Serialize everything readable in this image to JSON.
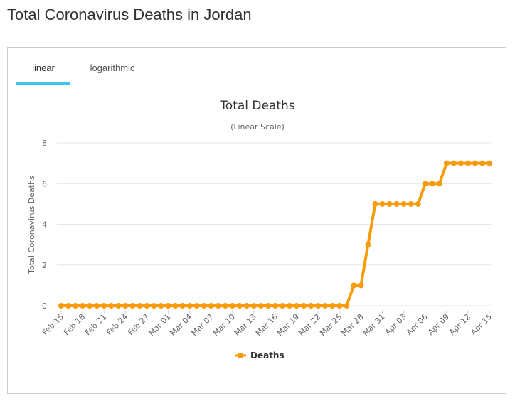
{
  "page": {
    "title": "Total Coronavirus Deaths in Jordan"
  },
  "tabs": [
    {
      "label": "linear",
      "active": true
    },
    {
      "label": "logarithmic",
      "active": false
    }
  ],
  "colors": {
    "series": "#f89b0d",
    "tab_accent": "#3ac5ef",
    "grid": "#e6e6e6"
  },
  "chart_data": {
    "type": "line",
    "title": "Total Deaths",
    "subtitle": "(Linear Scale)",
    "ylabel": "Total Coronavirus Deaths",
    "xlabel": "",
    "ylim": [
      0,
      8
    ],
    "yticks": [
      0,
      2,
      4,
      6,
      8
    ],
    "grid": true,
    "legend": "bottom-center",
    "x": [
      "Feb 15",
      "Feb 16",
      "Feb 17",
      "Feb 18",
      "Feb 19",
      "Feb 20",
      "Feb 21",
      "Feb 22",
      "Feb 23",
      "Feb 24",
      "Feb 25",
      "Feb 26",
      "Feb 27",
      "Feb 28",
      "Feb 29",
      "Mar 01",
      "Mar 02",
      "Mar 03",
      "Mar 04",
      "Mar 05",
      "Mar 06",
      "Mar 07",
      "Mar 08",
      "Mar 09",
      "Mar 10",
      "Mar 11",
      "Mar 12",
      "Mar 13",
      "Mar 14",
      "Mar 15",
      "Mar 16",
      "Mar 17",
      "Mar 18",
      "Mar 19",
      "Mar 20",
      "Mar 21",
      "Mar 22",
      "Mar 23",
      "Mar 24",
      "Mar 25",
      "Mar 26",
      "Mar 27",
      "Mar 28",
      "Mar 29",
      "Mar 30",
      "Mar 31",
      "Apr 01",
      "Apr 02",
      "Apr 03",
      "Apr 04",
      "Apr 05",
      "Apr 06",
      "Apr 07",
      "Apr 08",
      "Apr 09",
      "Apr 10",
      "Apr 11",
      "Apr 12",
      "Apr 13",
      "Apr 14",
      "Apr 15"
    ],
    "xtick_labels": [
      "Feb 15",
      "Feb 18",
      "Feb 21",
      "Feb 24",
      "Feb 27",
      "Mar 01",
      "Mar 04",
      "Mar 07",
      "Mar 10",
      "Mar 13",
      "Mar 16",
      "Mar 19",
      "Mar 22",
      "Mar 25",
      "Mar 28",
      "Mar 31",
      "Apr 03",
      "Apr 06",
      "Apr 09",
      "Apr 12",
      "Apr 15"
    ],
    "series": [
      {
        "name": "Deaths",
        "values": [
          0,
          0,
          0,
          0,
          0,
          0,
          0,
          0,
          0,
          0,
          0,
          0,
          0,
          0,
          0,
          0,
          0,
          0,
          0,
          0,
          0,
          0,
          0,
          0,
          0,
          0,
          0,
          0,
          0,
          0,
          0,
          0,
          0,
          0,
          0,
          0,
          0,
          0,
          0,
          0,
          0,
          1,
          1,
          3,
          5,
          5,
          5,
          5,
          5,
          5,
          5,
          6,
          6,
          6,
          7,
          7,
          7,
          7,
          7,
          7,
          7
        ]
      }
    ]
  }
}
